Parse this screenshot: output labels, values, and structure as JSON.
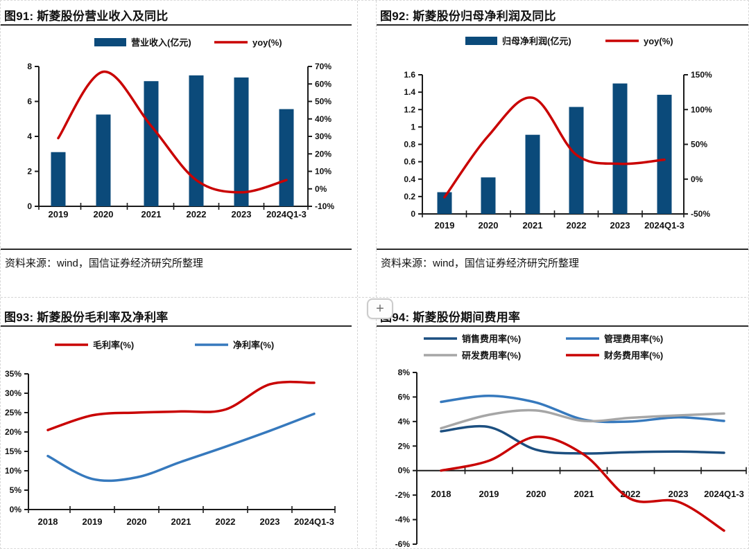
{
  "ui": {
    "zoom_button": "+"
  },
  "colors": {
    "bar_blue": "#0b4a7a",
    "dark_blue": "#1c4f80",
    "light_blue": "#3679bd",
    "gray": "#a6a6a6",
    "red": "#c90202",
    "axis_black": "#1a1a1a"
  },
  "panels": [
    {
      "title": "图91: 斯菱股份营业收入及同比",
      "source": "资料来源：wind，国信证券经济研究所整理"
    },
    {
      "title": "图92: 斯菱股份归母净利润及同比",
      "source": "资料来源：wind，国信证券经济研究所整理"
    },
    {
      "title": "图93: 斯菱股份毛利率及净利率"
    },
    {
      "title": "图94: 斯菱股份期间费用率"
    }
  ],
  "chart_data": [
    {
      "id": "fig91",
      "type": "combo-bar-line",
      "title": "图91: 斯菱股份营业收入及同比",
      "categories": [
        "2019",
        "2020",
        "2021",
        "2022",
        "2023",
        "2024Q1-3"
      ],
      "series": [
        {
          "name": "营业收入(亿元)",
          "kind": "bar",
          "axis": "left",
          "color": "#0b4a7a",
          "values": [
            3.1,
            5.25,
            7.16,
            7.49,
            7.37,
            5.56
          ]
        },
        {
          "name": "yoy(%)",
          "kind": "line",
          "axis": "right",
          "color": "#c90202",
          "values": [
            29,
            67,
            36,
            5,
            -2,
            5
          ]
        }
      ],
      "left_axis": {
        "min": 0,
        "max": 8,
        "step": 2,
        "labels": [
          "0",
          "2",
          "4",
          "6",
          "8"
        ]
      },
      "right_axis": {
        "min": -10,
        "max": 70,
        "step": 10,
        "labels": [
          "-10%",
          "0%",
          "10%",
          "20%",
          "30%",
          "40%",
          "50%",
          "60%",
          "70%"
        ]
      },
      "legend_position": "top",
      "grid": false
    },
    {
      "id": "fig92",
      "type": "combo-bar-line",
      "title": "图92: 斯菱股份归母净利润及同比",
      "categories": [
        "2019",
        "2020",
        "2021",
        "2022",
        "2023",
        "2024Q1-3"
      ],
      "series": [
        {
          "name": "归母净利润(亿元)",
          "kind": "bar",
          "axis": "left",
          "color": "#0b4a7a",
          "values": [
            0.25,
            0.42,
            0.91,
            1.23,
            1.5,
            1.37
          ]
        },
        {
          "name": "yoy(%)",
          "kind": "line",
          "axis": "right",
          "color": "#c90202",
          "values": [
            -26,
            62,
            117,
            35,
            22,
            28
          ]
        }
      ],
      "left_axis": {
        "min": 0,
        "max": 1.6,
        "step": 0.2,
        "labels": [
          "0",
          "0.2",
          "0.4",
          "0.6",
          "0.8",
          "1",
          "1.2",
          "1.4",
          "1.6"
        ]
      },
      "right_axis": {
        "min": -50,
        "max": 150,
        "step": 50,
        "labels": [
          "-50%",
          "0%",
          "50%",
          "100%",
          "150%"
        ]
      },
      "legend_position": "top",
      "grid": false
    },
    {
      "id": "fig93",
      "type": "line",
      "title": "图93: 斯菱股份毛利率及净利率",
      "categories": [
        "2018",
        "2019",
        "2020",
        "2021",
        "2022",
        "2023",
        "2024Q1-3"
      ],
      "series": [
        {
          "name": "毛利率(%)",
          "kind": "line",
          "color": "#c90202",
          "values": [
            20.5,
            24.3,
            25.0,
            25.3,
            25.8,
            32.3,
            32.7
          ]
        },
        {
          "name": "净利率(%)",
          "kind": "line",
          "color": "#3679bd",
          "values": [
            13.8,
            7.9,
            8.3,
            12.3,
            16.2,
            20.3,
            24.7
          ]
        }
      ],
      "left_axis": {
        "min": 0,
        "max": 35,
        "step": 5,
        "labels": [
          "0%",
          "5%",
          "10%",
          "15%",
          "20%",
          "25%",
          "30%",
          "35%"
        ]
      },
      "legend_position": "top",
      "grid": false
    },
    {
      "id": "fig94",
      "type": "line",
      "title": "图94: 斯菱股份期间费用率",
      "categories": [
        "2018",
        "2019",
        "2020",
        "2021",
        "2022",
        "2023",
        "2024Q1-3"
      ],
      "series": [
        {
          "name": "销售费用率(%)",
          "kind": "line",
          "color": "#1c4f80",
          "values": [
            3.2,
            3.55,
            1.7,
            1.4,
            1.5,
            1.55,
            1.45
          ]
        },
        {
          "name": "管理费用率(%)",
          "kind": "line",
          "color": "#3679bd",
          "values": [
            5.6,
            6.1,
            5.55,
            4.15,
            4.0,
            4.35,
            4.05
          ]
        },
        {
          "name": "研发费用率(%)",
          "kind": "line",
          "color": "#a6a6a6",
          "values": [
            3.45,
            4.55,
            4.9,
            4.05,
            4.3,
            4.5,
            4.65
          ]
        },
        {
          "name": "财务费用率(%)",
          "kind": "line",
          "color": "#c90202",
          "values": [
            0.0,
            0.8,
            2.75,
            1.3,
            -2.3,
            -2.55,
            -4.9
          ]
        }
      ],
      "left_axis": {
        "min": -6,
        "max": 8,
        "step": 2,
        "labels": [
          "-6%",
          "-4%",
          "-2%",
          "0%",
          "2%",
          "4%",
          "6%",
          "8%"
        ]
      },
      "legend_position": "top",
      "grid": false
    }
  ]
}
